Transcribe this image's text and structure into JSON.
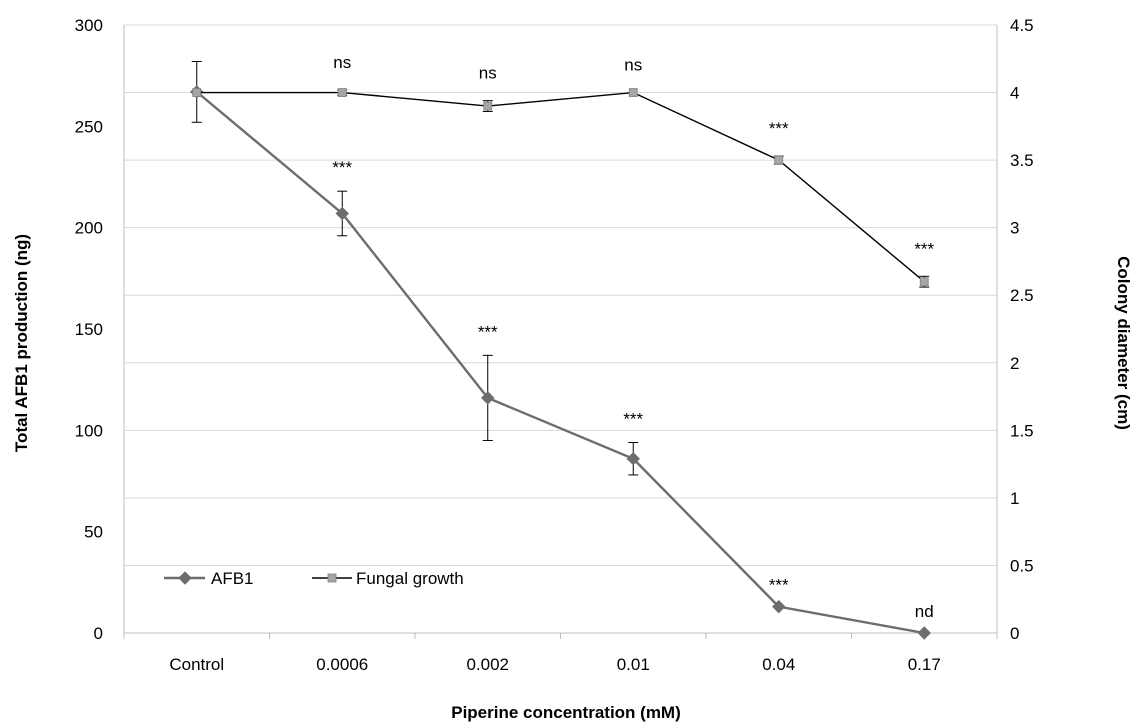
{
  "chart_data": {
    "type": "line",
    "categories": [
      "Control",
      "0.0006",
      "0.002",
      "0.01",
      "0.04",
      "0.17"
    ],
    "xlabel": "Piperine concentration (mM)",
    "ylabel": "Total AFB1 production (ng)",
    "y2label": "Colony diameter (cm)",
    "ylim": [
      0,
      300
    ],
    "y2lim": [
      0,
      4.5
    ],
    "yticks": [
      "0",
      "50",
      "100",
      "150",
      "200",
      "250",
      "300"
    ],
    "y2ticks": [
      "0",
      "0.5",
      "1",
      "1.5",
      "2",
      "2.5",
      "3",
      "3.5",
      "4",
      "4.5"
    ],
    "grid": true,
    "legend_position": "bottom-left",
    "series": [
      {
        "name": "AFB1",
        "axis": "left",
        "marker": "diamond",
        "color": "#6d6d6d",
        "values": [
          267,
          207,
          116,
          86,
          13,
          0
        ],
        "errors": [
          15,
          11,
          21,
          8,
          0,
          0
        ],
        "annotations": [
          "",
          "***",
          "***",
          "***",
          "***",
          "nd"
        ]
      },
      {
        "name": "Fungal growth",
        "axis": "right",
        "marker": "square",
        "color": "#000000",
        "marker_color": "#a6a6a6",
        "values": [
          4.0,
          4.0,
          3.9,
          4.0,
          3.5,
          2.6
        ],
        "errors": [
          0,
          0.02,
          0.04,
          0,
          0.03,
          0.04
        ],
        "annotations": [
          "",
          "ns",
          "ns",
          "ns",
          "***",
          "***"
        ]
      }
    ]
  }
}
